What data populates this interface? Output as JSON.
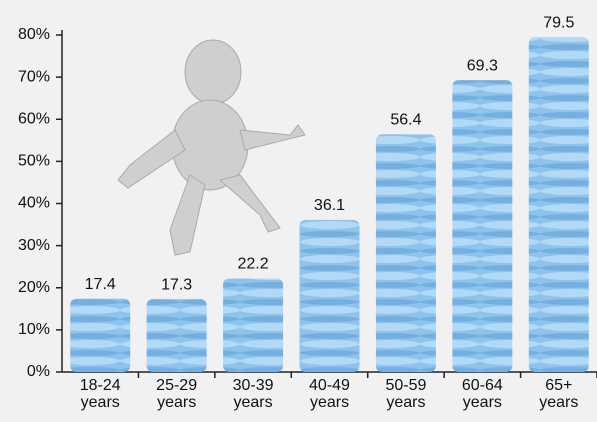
{
  "chart_data": {
    "type": "bar",
    "categories": [
      "18-24 years",
      "25-29 years",
      "30-39 years",
      "40-49 years",
      "50-59 years",
      "60-64 years",
      "65+ years"
    ],
    "values": [
      17.4,
      17.3,
      22.2,
      36.1,
      56.4,
      69.3,
      79.5
    ],
    "color": "#8cc4ee",
    "ylim": [
      0,
      80
    ],
    "yticks": [
      {
        "value": 0,
        "label": "0%"
      },
      {
        "value": 10,
        "label": "10%"
      },
      {
        "value": 20,
        "label": "20%"
      },
      {
        "value": 30,
        "label": "30%"
      },
      {
        "value": 40,
        "label": "40%"
      },
      {
        "value": 50,
        "label": "50%"
      },
      {
        "value": 60,
        "label": "60%"
      },
      {
        "value": 70,
        "label": "70%"
      },
      {
        "value": 80,
        "label": "80%"
      }
    ],
    "grid": false
  }
}
